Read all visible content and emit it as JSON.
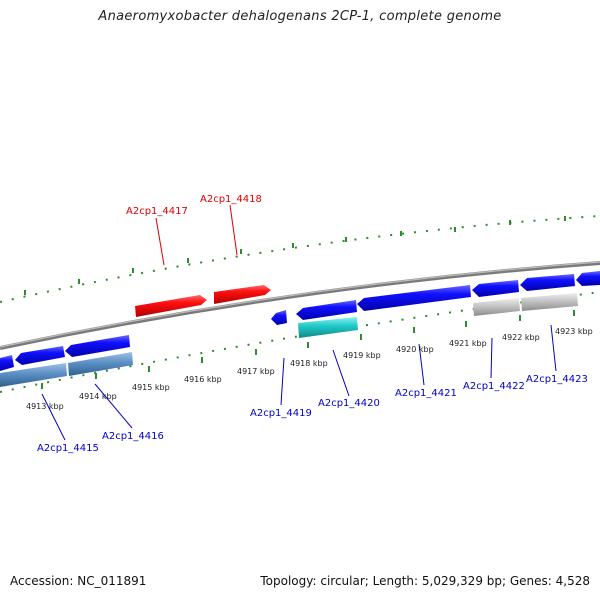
{
  "title": "Anaeromyxobacter dehalogenans 2CP-1, complete genome",
  "footer": {
    "accession": "Accession: NC_011891",
    "summary": "Topology: circular; Length: 5,029,329 bp; Genes: 4,528"
  },
  "tick_labels": [
    "4913 kbp",
    "4914 kbp",
    "4915 kbp",
    "4916 kbp",
    "4917 kbp",
    "4918 kbp",
    "4919 kbp",
    "4920 kbp",
    "4921 kbp",
    "4922 kbp",
    "4923 kbp"
  ],
  "genes_forward": [
    {
      "id": "A2cp1_4417",
      "color": "#ff0000"
    },
    {
      "id": "A2cp1_4418",
      "color": "#ff0000"
    }
  ],
  "genes_reverse": [
    {
      "id": "A2cp1_4415",
      "color": "#0000cc"
    },
    {
      "id": "A2cp1_4416",
      "color": "#0000cc"
    },
    {
      "id": "A2cp1_4419",
      "color": "#0000cc"
    },
    {
      "id": "A2cp1_4420",
      "color": "#0000cc"
    },
    {
      "id": "A2cp1_4421",
      "color": "#0000cc"
    },
    {
      "id": "A2cp1_4422",
      "color": "#0000cc"
    },
    {
      "id": "A2cp1_4423",
      "color": "#0000cc"
    }
  ],
  "colors": {
    "tick": "#2e8b2e",
    "backbone": "#888888",
    "cds": "#1a1aff",
    "rna_teal": "#22cccc",
    "pseudo_steel": "#5b8fc4",
    "grey_feature": "#bdbdbd",
    "label_blue": "#0000cc",
    "label_red": "#dd0000"
  }
}
